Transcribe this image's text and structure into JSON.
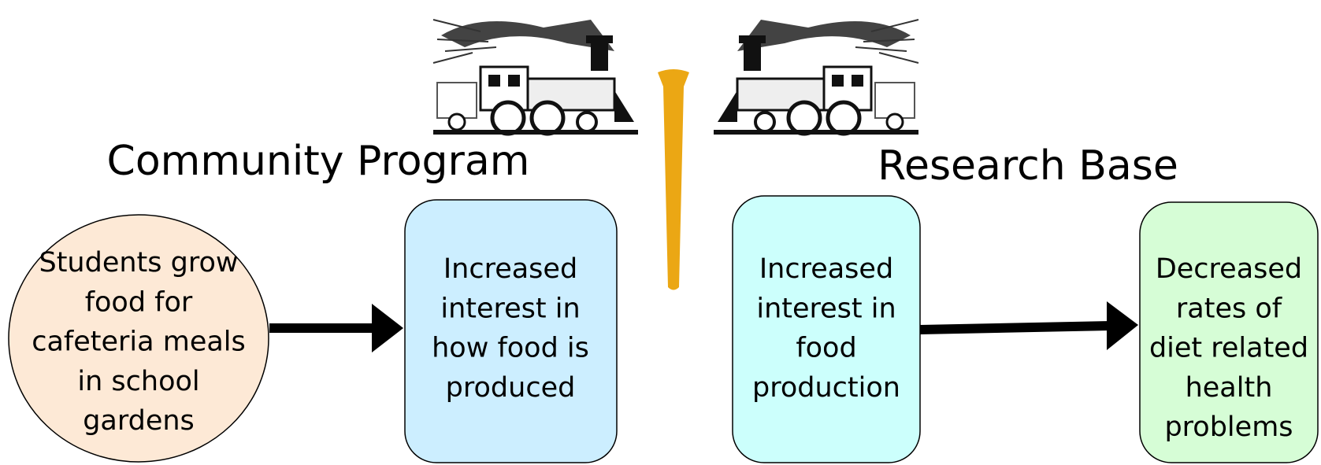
{
  "headings": {
    "left": "Community Program",
    "right": "Research Base"
  },
  "nodes": [
    {
      "lines": [
        "Students grow",
        "food for",
        "cafeteria meals",
        "in school",
        "gardens"
      ]
    },
    {
      "lines": [
        "Increased",
        "interest in",
        "how food is",
        "produced"
      ]
    },
    {
      "lines": [
        "Increased",
        "interest in",
        "food",
        "production"
      ]
    },
    {
      "lines": [
        "Decreased",
        "rates of",
        "diet related",
        "health",
        "problems"
      ]
    }
  ]
}
